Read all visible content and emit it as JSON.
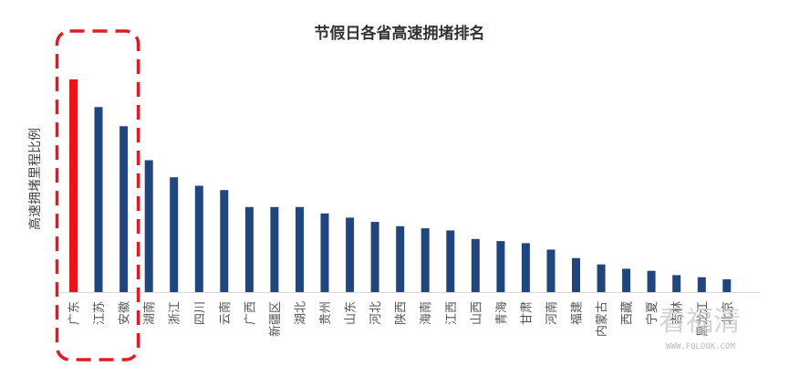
{
  "chart_data": {
    "type": "bar",
    "title": "节假日各省高速拥堵排名",
    "xlabel": "",
    "ylabel": "高速拥堵里程比例",
    "ylim": [
      0,
      100
    ],
    "categories": [
      "广东",
      "江苏",
      "安徽",
      "湖南",
      "浙江",
      "四川",
      "云南",
      "广西",
      "新疆区",
      "湖北",
      "贵州",
      "山东",
      "河北",
      "陕西",
      "海南",
      "江西",
      "山西",
      "青海",
      "甘肃",
      "河南",
      "福建",
      "内蒙古",
      "西藏",
      "宁夏",
      "吉林",
      "黑龙江",
      "北京"
    ],
    "values": [
      100,
      87,
      78,
      62,
      54,
      50,
      48,
      40,
      40,
      40,
      37,
      35,
      33,
      31,
      30,
      29,
      25,
      24,
      23,
      20,
      16,
      13,
      11,
      10,
      8,
      7,
      6
    ],
    "series": [
      {
        "values": [
          100,
          87,
          78,
          62,
          54,
          50,
          48,
          40,
          40,
          40,
          37,
          35,
          33,
          31,
          30,
          29,
          25,
          24,
          23,
          20,
          16,
          13,
          11,
          10,
          8,
          7,
          6
        ]
      }
    ],
    "colors": {
      "highlight": "#e8161b",
      "default": "#1f477d"
    },
    "highlight_indices": [
      0
    ],
    "highlight_box_indices": [
      0,
      1,
      2
    ],
    "highlight_box_color": "#e01b22",
    "grid": false
  },
  "watermark": {
    "main": "看福清",
    "sub": "WWW.FQLOOK.COM"
  }
}
